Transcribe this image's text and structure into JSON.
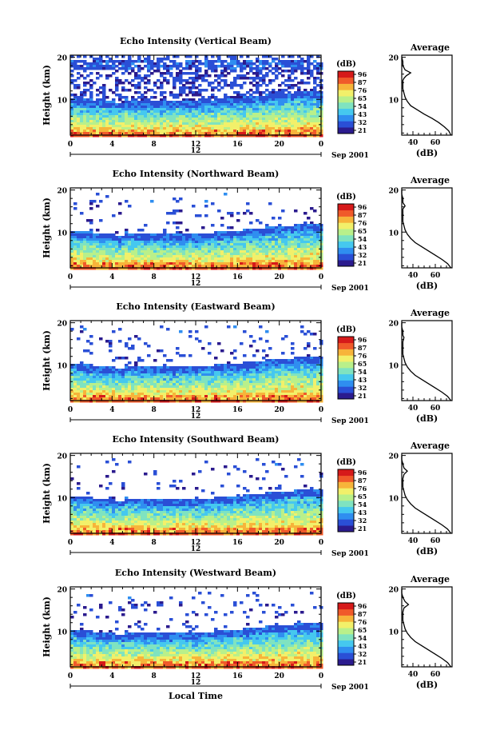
{
  "colors": {
    "colorbar": [
      "#2b1b8e",
      "#2a4fd6",
      "#2f8ef0",
      "#45c8ef",
      "#7fe3c0",
      "#b9f08a",
      "#f2f06a",
      "#f7b43a",
      "#f05a2a",
      "#d61a1a"
    ],
    "background": "#ffffff",
    "profile_line": "#000000"
  },
  "chart_data": [
    {
      "type": "heatmap",
      "title": "Echo Intensity (Vertical Beam)",
      "xlabel": "",
      "ylabel": "Height (km)",
      "x_ticks": [
        "0",
        "4",
        "8",
        "12",
        "16",
        "20",
        "0"
      ],
      "date_mark": "12",
      "date_right": "Sep 2001",
      "y_ticks": [
        "10",
        "20"
      ],
      "xlim": [
        0,
        24
      ],
      "ylim": [
        1.5,
        20.5
      ],
      "colorbar": {
        "unit": "(dB)",
        "labels": [
          "96",
          "87",
          "76",
          "65",
          "54",
          "43",
          "32",
          "21"
        ]
      },
      "profile": {
        "title": "Average",
        "xlabel": "(dB)",
        "x_ticks": [
          "40",
          "60"
        ],
        "y_ticks": [
          "10",
          "20"
        ],
        "xlim": [
          30,
          75
        ],
        "points": [
          [
            74,
            1.5
          ],
          [
            72,
            2.5
          ],
          [
            68,
            3.5
          ],
          [
            63,
            4.5
          ],
          [
            57,
            5.5
          ],
          [
            50,
            6.5
          ],
          [
            44,
            7.5
          ],
          [
            38,
            8.5
          ],
          [
            35,
            9.5
          ],
          [
            33,
            10.5
          ],
          [
            32,
            11.5
          ],
          [
            31,
            12.5
          ],
          [
            31,
            13.5
          ],
          [
            31,
            14.5
          ],
          [
            32,
            15
          ],
          [
            34,
            15.6
          ],
          [
            38,
            16.3
          ],
          [
            33,
            17
          ],
          [
            31,
            18
          ],
          [
            31,
            19
          ],
          [
            30,
            20
          ]
        ]
      }
    },
    {
      "type": "heatmap",
      "title": "Echo Intensity (Northward Beam)",
      "xlabel": "",
      "ylabel": "Height (km)",
      "x_ticks": [
        "0",
        "4",
        "8",
        "12",
        "16",
        "20",
        "0"
      ],
      "date_mark": "12",
      "date_right": "Sep 2001",
      "y_ticks": [
        "10",
        "20"
      ],
      "xlim": [
        0,
        24
      ],
      "ylim": [
        1.5,
        20.5
      ],
      "colorbar": {
        "unit": "(dB)",
        "labels": [
          "96",
          "87",
          "76",
          "65",
          "54",
          "43",
          "32",
          "21"
        ]
      },
      "profile": {
        "title": "Average",
        "xlabel": "(dB)",
        "x_ticks": [
          "40",
          "60"
        ],
        "y_ticks": [
          "10",
          "20"
        ],
        "xlim": [
          30,
          75
        ],
        "points": [
          [
            74,
            1.5
          ],
          [
            71,
            2.5
          ],
          [
            66,
            3.5
          ],
          [
            60,
            4.5
          ],
          [
            54,
            5.5
          ],
          [
            48,
            6.5
          ],
          [
            42,
            7.5
          ],
          [
            38,
            8.5
          ],
          [
            35,
            9.5
          ],
          [
            33,
            10.5
          ],
          [
            32,
            11.5
          ],
          [
            31,
            12.5
          ],
          [
            31,
            13.5
          ],
          [
            31,
            14.5
          ],
          [
            31,
            15.5
          ],
          [
            33,
            16.2
          ],
          [
            31,
            17
          ],
          [
            31,
            18
          ],
          [
            30,
            19
          ],
          [
            30,
            20
          ]
        ]
      }
    },
    {
      "type": "heatmap",
      "title": "Echo Intensity (Eastward Beam)",
      "xlabel": "",
      "ylabel": "Height (km)",
      "x_ticks": [
        "0",
        "4",
        "8",
        "12",
        "16",
        "20",
        "0"
      ],
      "date_mark": "12",
      "date_right": "Sep 2001",
      "y_ticks": [
        "10",
        "20"
      ],
      "xlim": [
        0,
        24
      ],
      "ylim": [
        1.5,
        20.5
      ],
      "colorbar": {
        "unit": "(dB)",
        "labels": [
          "96",
          "87",
          "76",
          "65",
          "54",
          "43",
          "32",
          "21"
        ]
      },
      "profile": {
        "title": "Average",
        "xlabel": "(dB)",
        "x_ticks": [
          "40",
          "60"
        ],
        "y_ticks": [
          "10",
          "20"
        ],
        "xlim": [
          30,
          75
        ],
        "points": [
          [
            74,
            1.5
          ],
          [
            71,
            2.5
          ],
          [
            66,
            3.5
          ],
          [
            60,
            4.5
          ],
          [
            54,
            5.5
          ],
          [
            48,
            6.5
          ],
          [
            42,
            7.5
          ],
          [
            38,
            8.5
          ],
          [
            35,
            9.5
          ],
          [
            33,
            10.5
          ],
          [
            32,
            11.5
          ],
          [
            31,
            12.5
          ],
          [
            31,
            13.5
          ],
          [
            31,
            14.5
          ],
          [
            31,
            15.5
          ],
          [
            32,
            16.5
          ],
          [
            31,
            17
          ],
          [
            31,
            18
          ],
          [
            30,
            19
          ],
          [
            30,
            20
          ]
        ]
      }
    },
    {
      "type": "heatmap",
      "title": "Echo Intensity (Southward Beam)",
      "xlabel": "",
      "ylabel": "Height (km)",
      "x_ticks": [
        "0",
        "4",
        "8",
        "12",
        "16",
        "20",
        "0"
      ],
      "date_mark": "12",
      "date_right": "Sep 2001",
      "y_ticks": [
        "10",
        "20"
      ],
      "xlim": [
        0,
        24
      ],
      "ylim": [
        1.5,
        20.5
      ],
      "colorbar": {
        "unit": "(dB)",
        "labels": [
          "96",
          "87",
          "76",
          "65",
          "54",
          "43",
          "32",
          "21"
        ]
      },
      "profile": {
        "title": "Average",
        "xlabel": "(dB)",
        "x_ticks": [
          "40",
          "60"
        ],
        "y_ticks": [
          "10",
          "20"
        ],
        "xlim": [
          30,
          75
        ],
        "points": [
          [
            74,
            1.5
          ],
          [
            71,
            2.5
          ],
          [
            66,
            3.5
          ],
          [
            60,
            4.5
          ],
          [
            54,
            5.5
          ],
          [
            48,
            6.5
          ],
          [
            42,
            7.5
          ],
          [
            38,
            8.5
          ],
          [
            35,
            9.5
          ],
          [
            33,
            10.5
          ],
          [
            32,
            11.5
          ],
          [
            31,
            12.5
          ],
          [
            31,
            13.5
          ],
          [
            31,
            14.5
          ],
          [
            32,
            15.5
          ],
          [
            35,
            16.3
          ],
          [
            32,
            17
          ],
          [
            31,
            18
          ],
          [
            30,
            19
          ],
          [
            30,
            20
          ]
        ]
      }
    },
    {
      "type": "heatmap",
      "title": "Echo Intensity (Westward Beam)",
      "xlabel": "Local Time",
      "ylabel": "Height (km)",
      "x_ticks": [
        "0",
        "4",
        "8",
        "12",
        "16",
        "20",
        "0"
      ],
      "date_mark": "12",
      "date_right": "Sep 2001",
      "y_ticks": [
        "10",
        "20"
      ],
      "xlim": [
        0,
        24
      ],
      "ylim": [
        1.5,
        20.5
      ],
      "colorbar": {
        "unit": "(dB)",
        "labels": [
          "96",
          "87",
          "76",
          "65",
          "54",
          "43",
          "32",
          "21"
        ]
      },
      "profile": {
        "title": "Average",
        "xlabel": "(dB)",
        "x_ticks": [
          "40",
          "60"
        ],
        "y_ticks": [
          "10",
          "20"
        ],
        "xlim": [
          30,
          75
        ],
        "points": [
          [
            74,
            1.5
          ],
          [
            71,
            2.5
          ],
          [
            66,
            3.5
          ],
          [
            60,
            4.5
          ],
          [
            54,
            5.5
          ],
          [
            48,
            6.5
          ],
          [
            42,
            7.5
          ],
          [
            38,
            8.5
          ],
          [
            35,
            9.5
          ],
          [
            33,
            10.5
          ],
          [
            32,
            11.5
          ],
          [
            31,
            12.5
          ],
          [
            31,
            13.5
          ],
          [
            31,
            14.5
          ],
          [
            32,
            15.5
          ],
          [
            36,
            16.3
          ],
          [
            33,
            17
          ],
          [
            31,
            18
          ],
          [
            30,
            19
          ],
          [
            30,
            20
          ]
        ]
      }
    }
  ]
}
